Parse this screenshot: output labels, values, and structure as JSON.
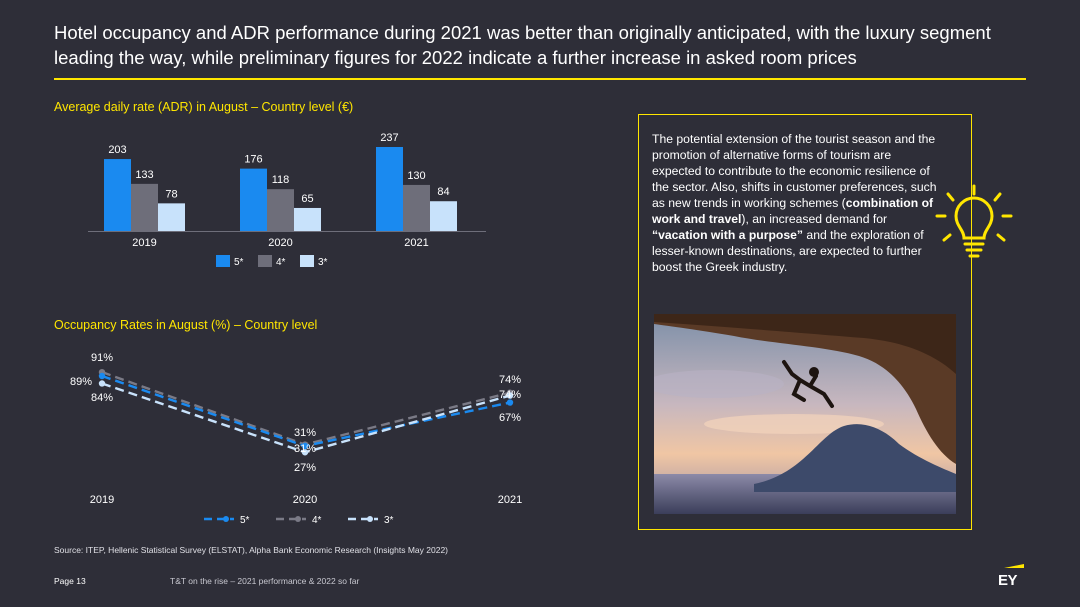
{
  "title": "Hotel occupancy and ADR performance during 2021 was better than originally anticipated, with the luxury segment leading the way, while preliminary figures for 2022 indicate a further increase in asked room prices",
  "colors": {
    "accent": "#ffe600",
    "background": "#2e2e38",
    "five_star": "#1a8af0",
    "four_star": "#6e6e7a",
    "three_star": "#c8e2fb"
  },
  "chart_data": [
    {
      "type": "bar",
      "title": "Average daily rate (ADR) in August – Country level (€)",
      "categories": [
        "2019",
        "2020",
        "2021"
      ],
      "series": [
        {
          "name": "5*",
          "values": [
            203,
            176,
            237
          ],
          "labels": [
            "203",
            "176",
            "237"
          ]
        },
        {
          "name": "4*",
          "values": [
            133,
            118,
            130
          ],
          "labels": [
            "133",
            "118",
            "130"
          ]
        },
        {
          "name": "3*",
          "values": [
            78,
            65,
            84
          ],
          "labels": [
            "78",
            "65",
            "84"
          ]
        }
      ],
      "ylim": [
        0,
        240
      ],
      "legend": "bottom",
      "grid": false
    },
    {
      "type": "line",
      "title": "Occupancy Rates in August (%) – Country level",
      "x": [
        "2019",
        "2020",
        "2021"
      ],
      "series": [
        {
          "name": "5*",
          "values": [
            89,
            31,
            67
          ],
          "labels": [
            "89%",
            "31%",
            "67%"
          ]
        },
        {
          "name": "4*",
          "values": [
            91,
            31,
            74
          ],
          "labels": [
            "91%",
            "31%",
            "74%"
          ]
        },
        {
          "name": "3*",
          "values": [
            84,
            27,
            74
          ],
          "labels": [
            "84%",
            "27%",
            "74%"
          ]
        }
      ],
      "ylim": [
        0,
        100
      ],
      "legend": "bottom",
      "grid": false
    }
  ],
  "callout": {
    "t1": "The potential extension of the tourist season and the promotion of alternative forms of tourism are expected to contribute to the economic resilience of the sector. Also, shifts in customer preferences, such as new trends in working schemes (",
    "b1": "combination of work and travel",
    "t2": "), an increased demand for ",
    "b2": "“vacation with a purpose”",
    "t3": " and the exploration of lesser-known destinations, are expected to further boost the Greek industry."
  },
  "icons": {
    "callout": "lightbulb-icon",
    "photo": "cliff-climber-photo",
    "logo": "ey-logo"
  },
  "source": "Source: ITEP, Hellenic Statistical Survey (ELSTAT), Alpha Bank Economic Research (Insights May 2022)",
  "footer": {
    "page": "Page 13",
    "title": "T&T on the rise – 2021 performance & 2022 so far",
    "logo_text": "EY"
  }
}
